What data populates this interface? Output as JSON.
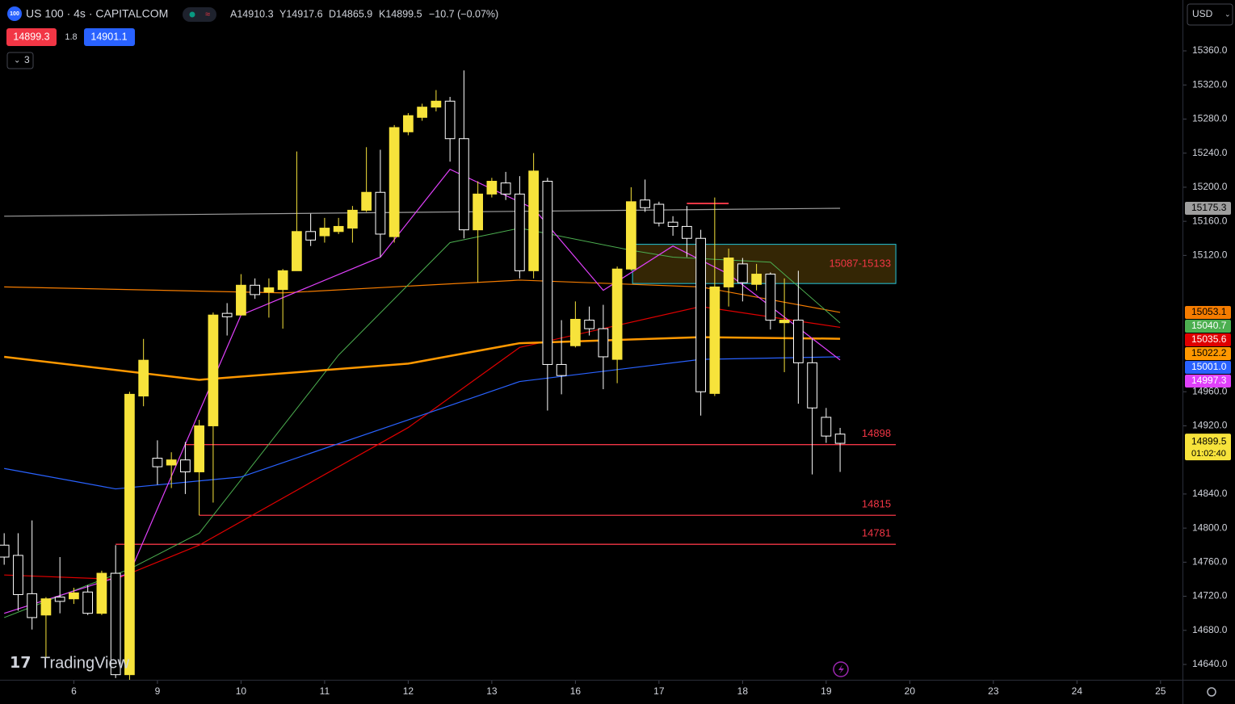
{
  "header": {
    "badge": "100",
    "symbol": "US 100 · 4s · CAPITALCOM",
    "open_text": "A14910.3",
    "high_text": "Y14917.6",
    "low_text": "D14865.9",
    "close_text": "K14899.5",
    "change_text": "−10.7 (−0.07%)",
    "bid": 14899.3,
    "spread": 1.8,
    "ask": 14901.1,
    "indicators": "3",
    "currency": "USD",
    "logo": "TradingView"
  },
  "chart_data": {
    "type": "candlestick",
    "x": [
      0,
      1,
      2,
      3,
      4,
      5,
      6,
      7,
      8,
      9,
      10,
      11,
      12,
      13,
      14,
      15,
      16,
      17,
      18,
      19,
      20,
      21,
      22,
      23,
      24,
      25,
      26,
      27,
      28,
      29,
      30,
      31,
      32,
      33,
      34,
      35,
      36,
      37,
      38,
      39,
      40,
      41,
      42,
      43,
      44,
      45,
      46,
      47,
      48,
      49,
      50,
      51,
      52,
      53,
      54,
      55,
      56,
      57,
      58,
      59,
      60
    ],
    "open": [
      14780,
      14768,
      14723,
      14698,
      14719,
      14717,
      14725,
      14700,
      14747,
      14628,
      14955,
      14882,
      14874,
      14880,
      14866,
      14920,
      15052,
      15050,
      15085,
      15077,
      15080,
      15102,
      15148,
      15143,
      15148,
      15152,
      15173,
      15194,
      15142,
      15265,
      15282,
      15294,
      15301,
      15257,
      15150,
      15192,
      15205,
      15192,
      15102,
      15207,
      14992,
      15014,
      15044,
      15034,
      14998,
      15104,
      15185,
      15180,
      15159,
      15154,
      15140,
      14958,
      15083,
      15110,
      15086,
      15098,
      15041,
      15044,
      14994,
      14930,
      14910.3
    ],
    "high": [
      14794,
      14794,
      14809,
      14719,
      14766,
      14730,
      14733,
      14750,
      14780,
      14960,
      15022,
      14903,
      14889,
      14901,
      14927,
      15053,
      15064,
      15098,
      15093,
      15093,
      15104,
      15242,
      15169,
      15164,
      15164,
      15178,
      15247,
      15244,
      15273,
      15287,
      15298,
      15314,
      15306,
      15337,
      15207,
      15211,
      15218,
      15213,
      15240,
      15211,
      15044,
      15066,
      15060,
      15062,
      15107,
      15200,
      15209,
      15183,
      15166,
      15178,
      15150,
      15188,
      15128,
      15117,
      15110,
      15100,
      15093,
      15102,
      15022,
      14941,
      14917.6
    ],
    "low": [
      14757,
      14703,
      14681,
      14648,
      14700,
      14711,
      14698,
      14698,
      14624,
      14622,
      14943,
      14851,
      14847,
      14840,
      14815,
      14830,
      15026,
      15050,
      15069,
      15047,
      15034,
      15102,
      15131,
      15135,
      15145,
      15135,
      15171,
      15118,
      15135,
      15261,
      15278,
      15289,
      15230,
      15140,
      15088,
      15188,
      15185,
      15093,
      15093,
      14938,
      14957,
      15012,
      15026,
      14963,
      14970,
      15102,
      15171,
      15154,
      15143,
      15118,
      14932,
      14955,
      15060,
      15066,
      15079,
      15033,
      14983,
      14946,
      14863,
      14900,
      14865.9
    ],
    "close": [
      14766,
      14722,
      14695,
      14717,
      14714,
      14724,
      14700,
      14747,
      14628,
      14957,
      14997,
      14872,
      14880,
      14866,
      14920,
      15050,
      15048,
      15085,
      15074,
      15082,
      15102,
      15148,
      15138,
      15152,
      15154,
      15173,
      15194,
      15145,
      15270,
      15284,
      15294,
      15301,
      15257,
      15150,
      15192,
      15207,
      15192,
      15102,
      15219,
      14992,
      14979,
      15045,
      15034,
      15001,
      15104,
      15183,
      15176,
      15158,
      15154,
      15140,
      14960,
      15083,
      15117,
      15088,
      15098,
      15044,
      15044,
      14994,
      14941,
      14908,
      14899.5
    ],
    "up_color": "#f7e33b",
    "down_color": "#ffffff",
    "xlim": [
      -0.3,
      84.46
    ],
    "xticks": [
      {
        "value": 5,
        "label": "6"
      },
      {
        "value": 11,
        "label": "9"
      },
      {
        "value": 17,
        "label": "10"
      },
      {
        "value": 23,
        "label": "11"
      },
      {
        "value": 29,
        "label": "12"
      },
      {
        "value": 35,
        "label": "13"
      },
      {
        "value": 41,
        "label": "16"
      },
      {
        "value": 47,
        "label": "17"
      },
      {
        "value": 53,
        "label": "18"
      },
      {
        "value": 59,
        "label": "19"
      },
      {
        "value": 65,
        "label": "20"
      },
      {
        "value": 71,
        "label": "23"
      },
      {
        "value": 77,
        "label": "24"
      },
      {
        "value": 83,
        "label": "25"
      }
    ],
    "ylim": [
      14622,
      15419.7
    ],
    "yticks": [
      {
        "value": 15360,
        "label": "15360.0"
      },
      {
        "value": 15320,
        "label": "15320.0"
      },
      {
        "value": 15280,
        "label": "15280.0"
      },
      {
        "value": 15240,
        "label": "15240.0"
      },
      {
        "value": 15200,
        "label": "15200.0"
      },
      {
        "value": 15160,
        "label": "15160.0"
      },
      {
        "value": 15120,
        "label": "15120.0"
      },
      {
        "value": 14960,
        "label": "14960.0"
      },
      {
        "value": 14920,
        "label": "14920.0"
      },
      {
        "value": 14840,
        "label": "14840.0"
      },
      {
        "value": 14800,
        "label": "14800.0"
      },
      {
        "value": 14760,
        "label": "14760.0"
      },
      {
        "value": 14720,
        "label": "14720.0"
      },
      {
        "value": 14680,
        "label": "14680.0"
      },
      {
        "value": 14640,
        "label": "14640.0"
      }
    ],
    "grid": false,
    "lines": [
      {
        "color": "#9e9e9e",
        "width": 1.2,
        "x": [
          0,
          60
        ],
        "values": [
          15166,
          15175.3
        ],
        "last": 15175.3,
        "label_text_color": "#000000"
      },
      {
        "color": "#f57c00",
        "width": 1.2,
        "x": [
          0,
          20,
          37,
          50,
          60
        ],
        "values": [
          15083,
          15076,
          15091,
          15083,
          15053.1
        ],
        "last": 15053.1,
        "label_text_color": "#000000"
      },
      {
        "color": "#4caf50",
        "width": 1,
        "x": [
          0,
          9,
          14,
          24,
          32,
          37,
          45,
          48,
          55,
          60
        ],
        "values": [
          14695,
          14752,
          14794,
          15003,
          15135,
          15152,
          15126,
          15118,
          15112,
          15040.7
        ],
        "last": 15040.7,
        "label_text_color": "#ffffff"
      },
      {
        "color": "#e00000",
        "width": 1.2,
        "x": [
          0,
          8,
          14,
          29,
          37,
          50,
          60
        ],
        "values": [
          14745,
          14740,
          14780,
          14918,
          15012,
          15060,
          15035.6
        ],
        "last": 15035.6,
        "label_text_color": "#ffffff"
      },
      {
        "color": "#ff9800",
        "width": 2.5,
        "x": [
          0,
          14,
          29,
          37,
          50,
          60
        ],
        "values": [
          15001,
          14974,
          14993,
          15017,
          15024,
          15022.2
        ],
        "last": 15022.2,
        "label_text_color": "#000000"
      },
      {
        "color": "#2962ff",
        "width": 1.2,
        "x": [
          0,
          8,
          17,
          29,
          37,
          50,
          60
        ],
        "values": [
          14870,
          14846,
          14860,
          14927,
          14972,
          14998,
          15001
        ],
        "last": {
          "value": 15001,
          "label": "15001.0"
        },
        "label_text_color": "#ffffff"
      },
      {
        "color": "#e040fb",
        "width": 1.2,
        "x": [
          0,
          9,
          17,
          27,
          32,
          38,
          43,
          48,
          52,
          60
        ],
        "values": [
          14700,
          14747,
          15050,
          15118,
          15221,
          15175,
          15079,
          15131,
          15098,
          14997.3
        ],
        "last": 14997.3,
        "label_text_color": "#ffffff"
      }
    ],
    "levels": [
      {
        "value": 14898,
        "x": [
          13,
          64
        ],
        "color": "#f23645"
      },
      {
        "value": 14815,
        "x": [
          14,
          64
        ],
        "color": "#f23645"
      },
      {
        "value": 14781,
        "x": [
          8,
          64
        ],
        "color": "#f23645"
      }
    ],
    "short_level": {
      "value": 15181,
      "x": [
        49,
        52
      ],
      "color": "#f23645"
    },
    "zone": {
      "low": 15087,
      "high": 15133,
      "x": [
        45.1,
        64
      ],
      "label": "15087-15133",
      "border": "#26c6da",
      "fill": "#3a2a06",
      "text_color": "#f23645"
    },
    "last_price": 14899.5,
    "countdown": "01:02:40"
  }
}
